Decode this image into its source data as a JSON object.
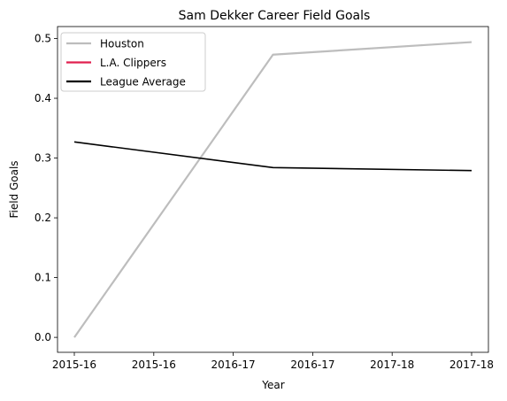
{
  "chart_data": {
    "type": "line",
    "title": "Sam Dekker Career Field Goals",
    "xlabel": "Year",
    "ylabel": "Field Goals",
    "x_tick_labels": [
      "2015-16",
      "2015-16",
      "2016-17",
      "2016-17",
      "2017-18",
      "2017-18"
    ],
    "ylim": [
      -0.025,
      0.52
    ],
    "y_ticks": [
      0.0,
      0.1,
      0.2,
      0.3,
      0.4,
      0.5
    ],
    "y_tick_labels": [
      "0.0",
      "0.1",
      "0.2",
      "0.3",
      "0.4",
      "0.5"
    ],
    "grid": false,
    "legend_position": "top-left",
    "series": [
      {
        "name": "Houston",
        "color": "#bdbdbd",
        "points": [
          [
            0,
            0.0
          ],
          [
            2.5,
            0.473
          ],
          [
            5,
            0.494
          ]
        ]
      },
      {
        "name": "L.A. Clippers",
        "color": "#e0204f",
        "points": []
      },
      {
        "name": "League Average",
        "color": "#000000",
        "points": [
          [
            0,
            0.327
          ],
          [
            2.5,
            0.284
          ],
          [
            5,
            0.279
          ]
        ]
      }
    ]
  }
}
